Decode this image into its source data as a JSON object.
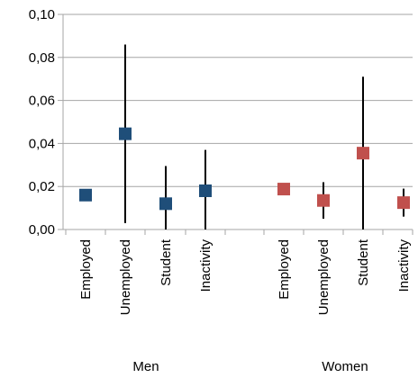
{
  "chart_data": {
    "type": "scatter",
    "title": "",
    "xlabel": "",
    "ylabel": "",
    "ylim": [
      0,
      0.1
    ],
    "yticks": [
      "0,00",
      "0,02",
      "0,04",
      "0,06",
      "0,08",
      "0,10"
    ],
    "ytick_values": [
      0,
      0.02,
      0.04,
      0.06,
      0.08,
      0.1
    ],
    "grid": true,
    "legend": "none",
    "groups": [
      {
        "label": "Men",
        "color": "#1f4e79",
        "points": [
          {
            "category": "Employed",
            "value": 0.016,
            "low": 0.016,
            "high": 0.016
          },
          {
            "category": "Unemployed",
            "value": 0.0445,
            "low": 0.003,
            "high": 0.086
          },
          {
            "category": "Student",
            "value": 0.012,
            "low": 0.0,
            "high": 0.0295
          },
          {
            "category": "Inactivity",
            "value": 0.018,
            "low": 0.0,
            "high": 0.037
          }
        ]
      },
      {
        "label": "Women",
        "color": "#c0504d",
        "points": [
          {
            "category": "Employed",
            "value": 0.0188,
            "low": 0.0188,
            "high": 0.0188
          },
          {
            "category": "Unemployed",
            "value": 0.0135,
            "low": 0.005,
            "high": 0.022
          },
          {
            "category": "Student",
            "value": 0.0355,
            "low": 0.0,
            "high": 0.071
          },
          {
            "category": "Inactivity",
            "value": 0.0125,
            "low": 0.006,
            "high": 0.019
          }
        ]
      }
    ]
  }
}
